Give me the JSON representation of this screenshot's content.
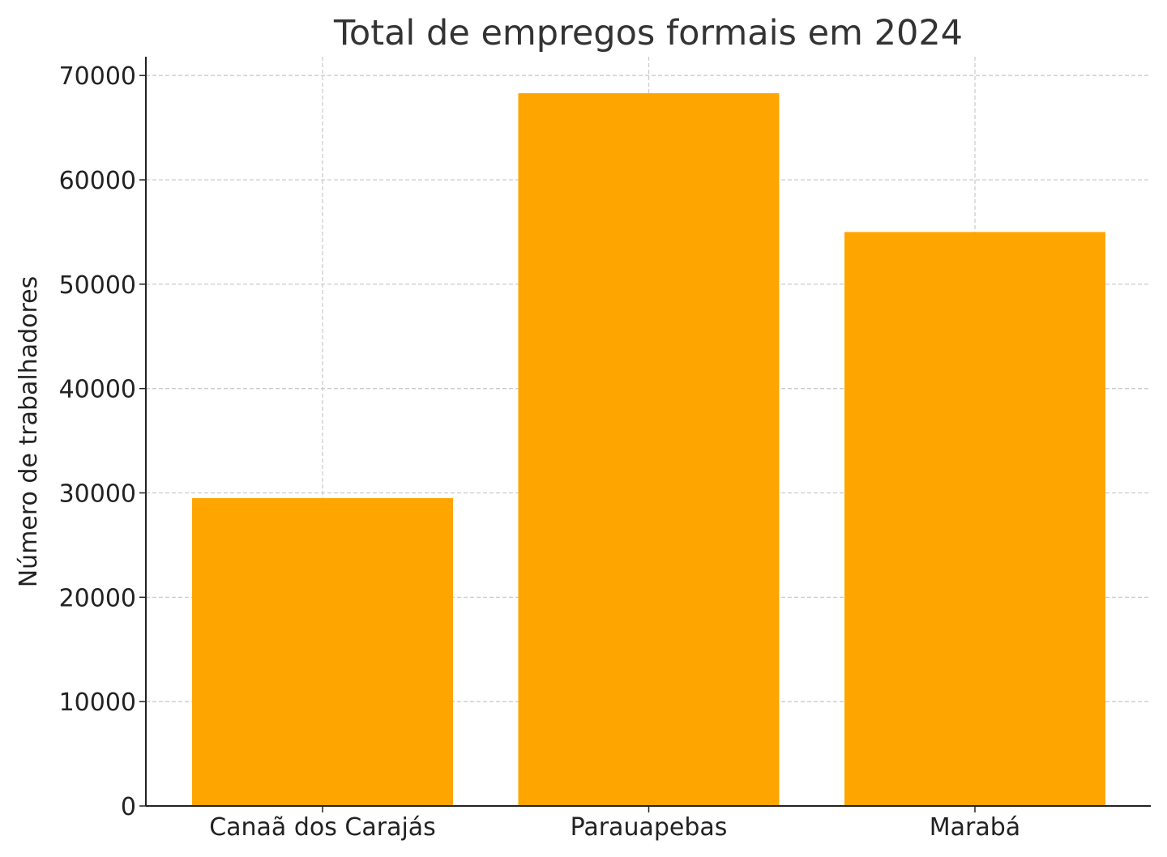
{
  "chart_data": {
    "type": "bar",
    "title": "Total de empregos formais em 2024",
    "xlabel": "",
    "ylabel": "Número de trabalhadores",
    "categories": [
      "Canaã dos Carajás",
      "Parauapebas",
      "Marabá"
    ],
    "values": [
      29500,
      68300,
      55000
    ],
    "ylim": [
      0,
      71800
    ],
    "yticks": [
      0,
      10000,
      20000,
      30000,
      40000,
      50000,
      60000,
      70000
    ],
    "bar_color": "#FFA500",
    "grid": true
  }
}
